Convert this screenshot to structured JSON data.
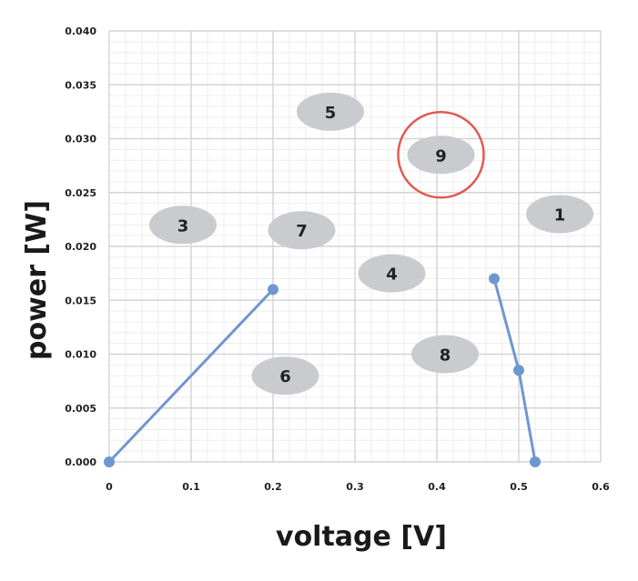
{
  "chart_data": {
    "type": "scatter",
    "xlabel": "voltage [V]",
    "ylabel": "power [W]",
    "xlim": [
      0,
      0.6
    ],
    "ylim": [
      0,
      0.04
    ],
    "x_ticks": [
      "0",
      "0.1",
      "0.2",
      "0.3",
      "0.4",
      "0.5",
      "0.6"
    ],
    "y_ticks": [
      "0.000",
      "0.005",
      "0.010",
      "0.015",
      "0.020",
      "0.025",
      "0.030",
      "0.035",
      "0.040"
    ],
    "grid": true,
    "line_color": "#6f97cf",
    "point_color": "#6f97cf",
    "series": [
      {
        "points": [
          [
            0,
            0.0
          ],
          [
            0.2,
            0.016
          ]
        ]
      },
      {
        "points": [
          [
            0.47,
            0.017
          ],
          [
            0.5,
            0.0085
          ],
          [
            0.52,
            0.0
          ]
        ]
      }
    ],
    "annotations": [
      {
        "label": "1",
        "x": 0.55,
        "y": 0.023
      },
      {
        "label": "3",
        "x": 0.09,
        "y": 0.022
      },
      {
        "label": "4",
        "x": 0.345,
        "y": 0.0175
      },
      {
        "label": "5",
        "x": 0.27,
        "y": 0.0325
      },
      {
        "label": "6",
        "x": 0.215,
        "y": 0.008
      },
      {
        "label": "7",
        "x": 0.235,
        "y": 0.0215
      },
      {
        "label": "8",
        "x": 0.41,
        "y": 0.01
      },
      {
        "label": "9",
        "x": 0.405,
        "y": 0.0285,
        "highlighted": true
      }
    ],
    "badge_color": "#c9cbce",
    "highlight_color": "#e05a52"
  }
}
